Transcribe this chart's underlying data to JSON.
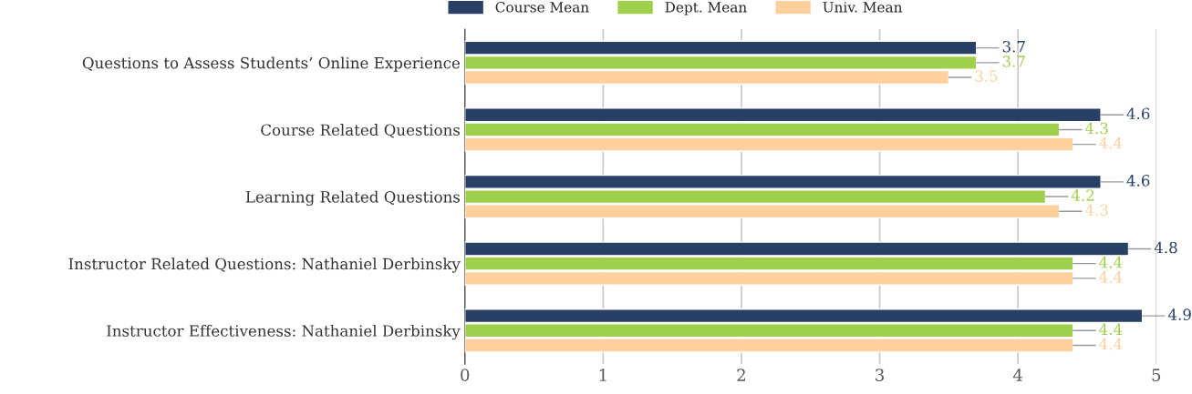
{
  "chart_data": {
    "type": "bar",
    "orientation": "horizontal",
    "categories": [
      "Questions to Assess Students’ Online Experience",
      "Course Related Questions",
      "Learning Related Questions",
      "Instructor Related Questions: Nathaniel Derbinsky",
      "Instructor Effectiveness: Nathaniel Derbinsky"
    ],
    "series": [
      {
        "name": "Course Mean",
        "color": "#283f66",
        "values": [
          3.7,
          4.6,
          4.6,
          4.8,
          4.9
        ]
      },
      {
        "name": "Dept. Mean",
        "color": "#9fd04b",
        "values": [
          3.7,
          4.3,
          4.2,
          4.4,
          4.4
        ]
      },
      {
        "name": "Univ. Mean",
        "color": "#fdd09e",
        "values": [
          3.5,
          4.4,
          4.3,
          4.4,
          4.4
        ]
      }
    ],
    "xlim": [
      0,
      5
    ],
    "xticks": [
      0,
      1,
      2,
      3,
      4,
      5
    ],
    "grid": "x",
    "legend": "top",
    "data_labels": true
  }
}
